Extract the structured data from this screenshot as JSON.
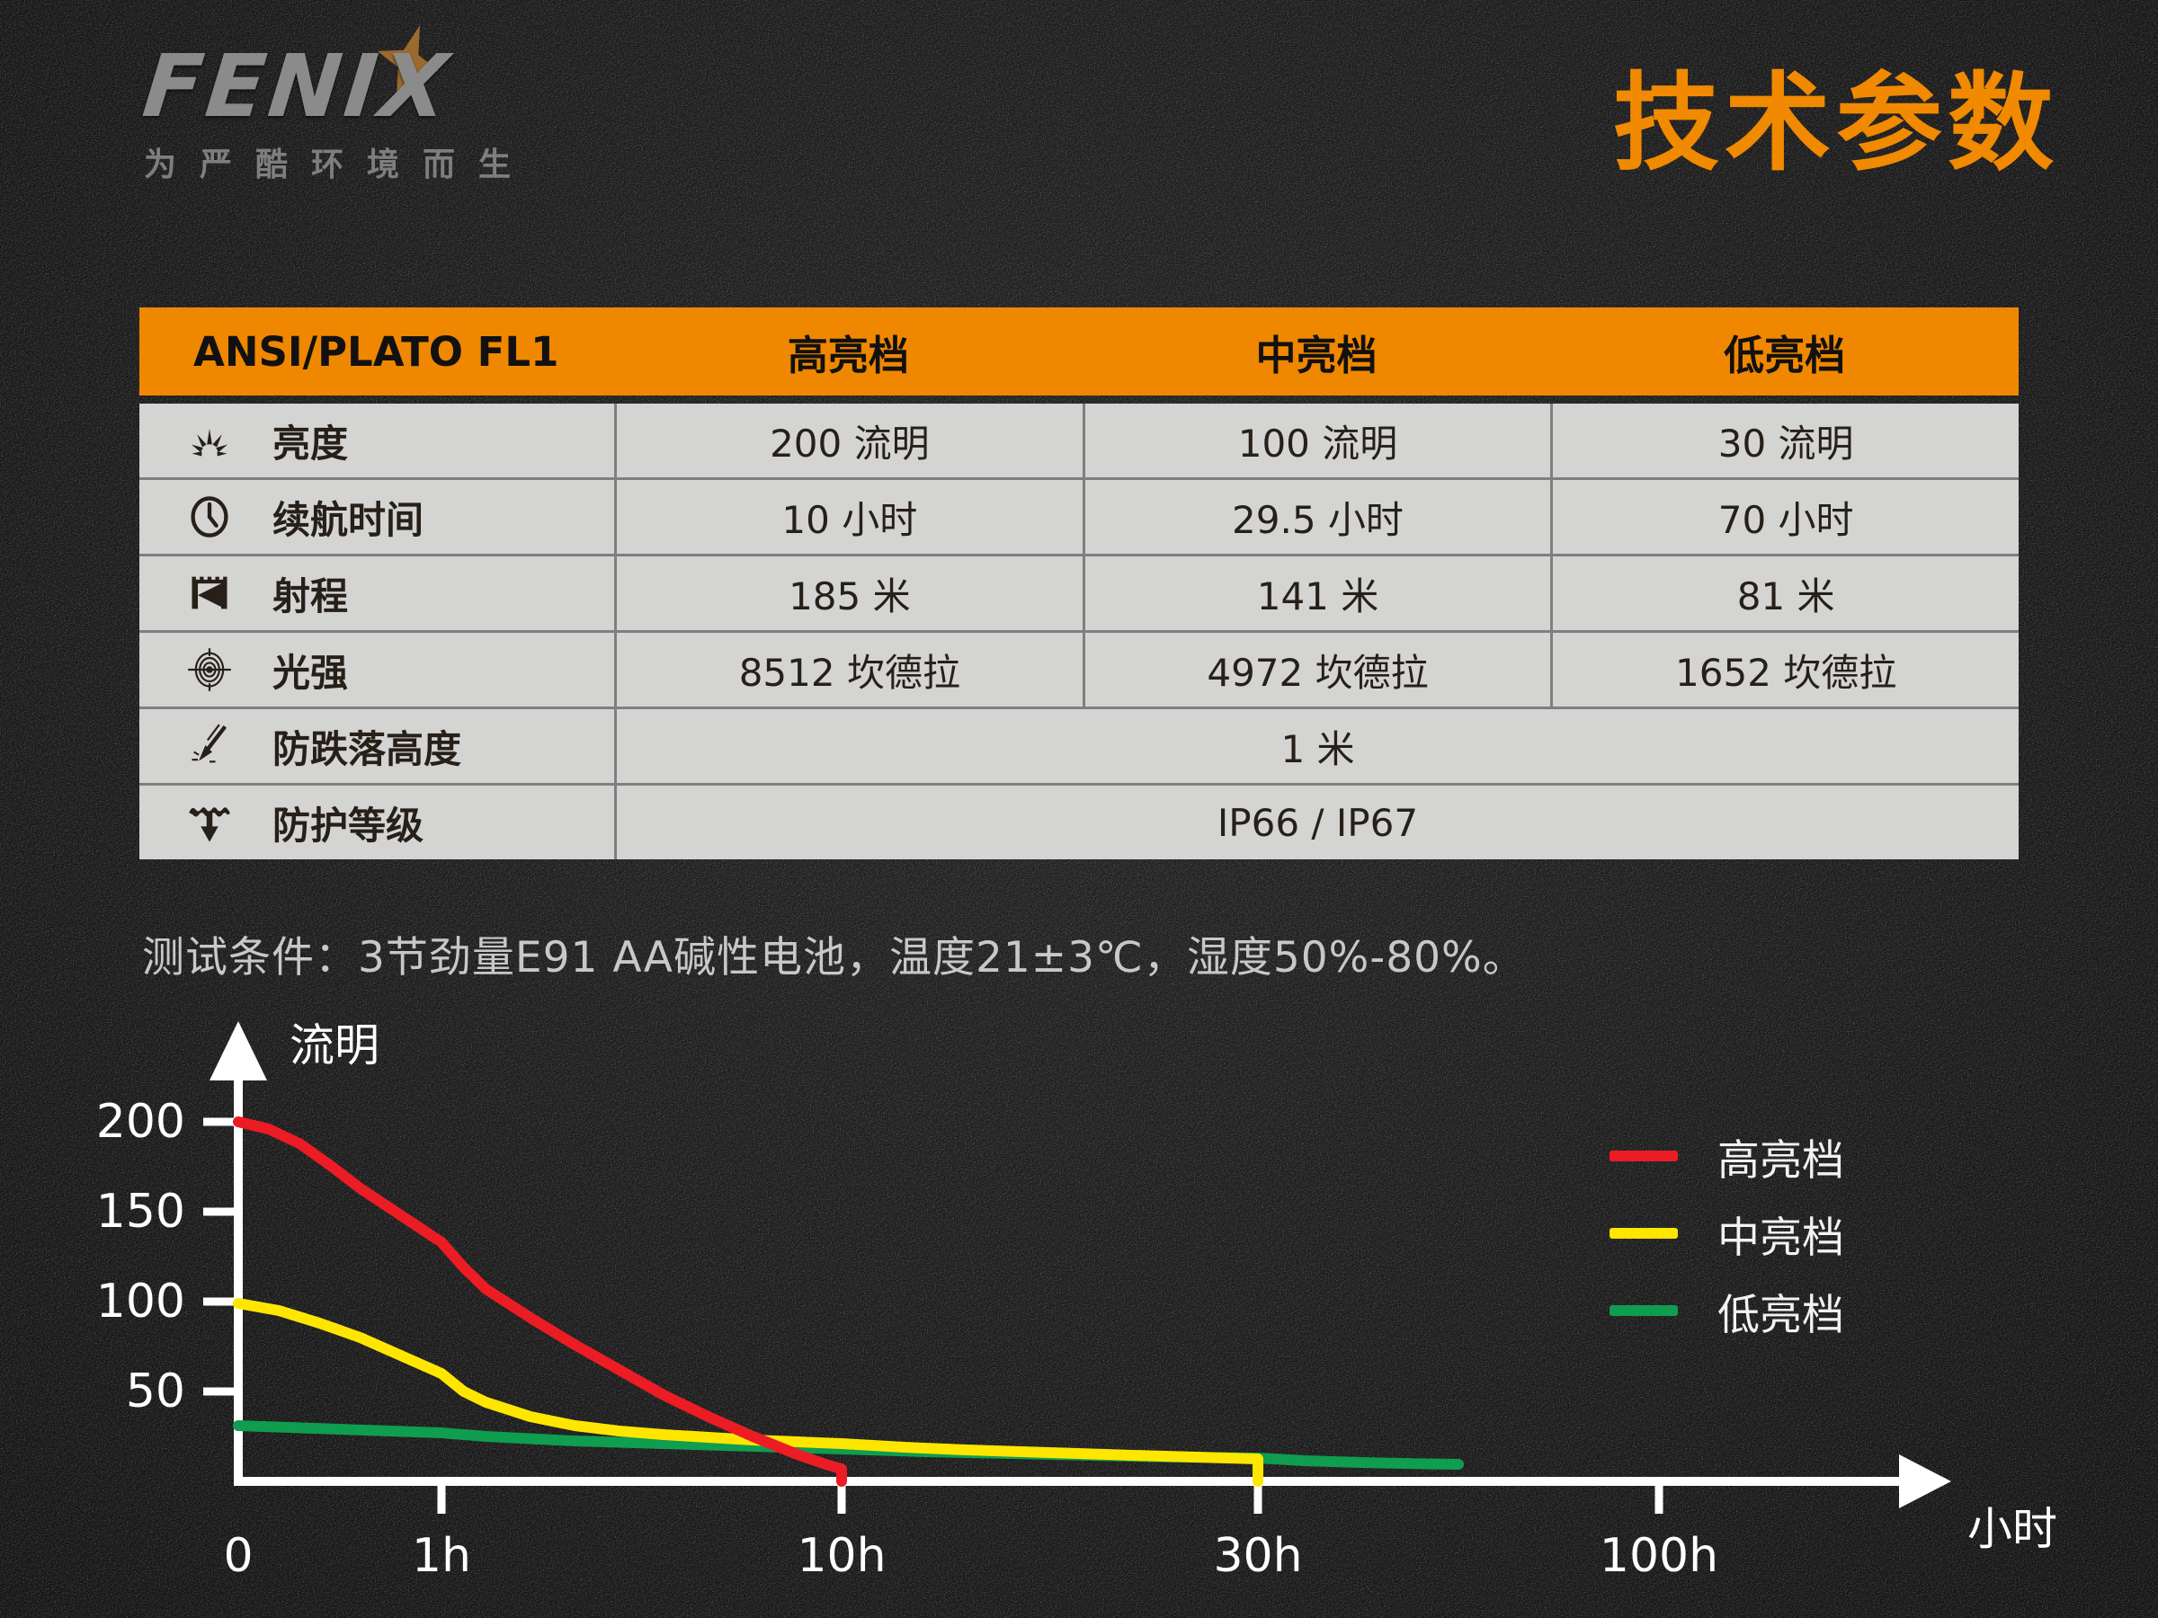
{
  "logo": {
    "brand": "FENIX",
    "tagline": "为严酷环境而生"
  },
  "page_title": "技术参数",
  "table": {
    "header": [
      "ANSI/PLATO FL1",
      "高亮档",
      "中亮档",
      "低亮档"
    ],
    "rows": [
      {
        "icon": "brightness-icon",
        "label": "亮度",
        "values": [
          "200 流明",
          "100 流明",
          "30 流明"
        ]
      },
      {
        "icon": "runtime-icon",
        "label": "续航时间",
        "values": [
          "10 小时",
          "29.5 小时",
          "70 小时"
        ]
      },
      {
        "icon": "beam-distance-icon",
        "label": "射程",
        "values": [
          "185 米",
          "141 米",
          "81 米"
        ]
      },
      {
        "icon": "intensity-icon",
        "label": "光强",
        "values": [
          "8512 坎德拉",
          "4972 坎德拉",
          "1652 坎德拉"
        ]
      },
      {
        "icon": "impact-resistance-icon",
        "label": "防跌落高度",
        "merged_value": "1 米"
      },
      {
        "icon": "waterproof-icon",
        "label": "防护等级",
        "merged_value": "IP66 / IP67"
      }
    ]
  },
  "test_conditions": "测试条件：3节劲量E91 AA碱性电池，温度21±3℃，湿度50%-80%。",
  "chart_data": {
    "type": "line",
    "title": "",
    "xlabel": "小时",
    "ylabel": "流明",
    "ylim": [
      0,
      220
    ],
    "grid": false,
    "legend_position": "right",
    "x_scale_note": "non-linear time axis, anchors 0/1h/10h/30h/100h",
    "x_ticks": [
      {
        "t": 0,
        "label": "0"
      },
      {
        "t": 1,
        "label": "1h"
      },
      {
        "t": 10,
        "label": "10h"
      },
      {
        "t": 30,
        "label": "30h"
      },
      {
        "t": 100,
        "label": "100h"
      }
    ],
    "y_ticks": [
      {
        "v": 50,
        "label": "50"
      },
      {
        "v": 100,
        "label": "100"
      },
      {
        "v": 150,
        "label": "150"
      },
      {
        "v": 200,
        "label": "200"
      }
    ],
    "series": [
      {
        "name": "高亮档",
        "color": "#ec1c24",
        "points": [
          [
            0,
            200
          ],
          [
            0.15,
            196
          ],
          [
            0.3,
            188
          ],
          [
            0.45,
            176
          ],
          [
            0.6,
            163
          ],
          [
            0.8,
            148
          ],
          [
            1,
            133
          ],
          [
            1.5,
            119
          ],
          [
            2,
            107
          ],
          [
            3,
            91
          ],
          [
            4,
            76
          ],
          [
            5,
            62
          ],
          [
            6,
            48
          ],
          [
            7,
            36
          ],
          [
            8,
            25
          ],
          [
            9,
            15
          ],
          [
            9.7,
            9
          ],
          [
            10,
            7
          ],
          [
            10,
            0
          ]
        ]
      },
      {
        "name": "中亮档",
        "color": "#ffe600",
        "points": [
          [
            0,
            99
          ],
          [
            0.2,
            95
          ],
          [
            0.4,
            88
          ],
          [
            0.6,
            80
          ],
          [
            0.8,
            70
          ],
          [
            1,
            60
          ],
          [
            1.5,
            50
          ],
          [
            2,
            44
          ],
          [
            3,
            36
          ],
          [
            4,
            31
          ],
          [
            5,
            28
          ],
          [
            6,
            26
          ],
          [
            8,
            23
          ],
          [
            10,
            21
          ],
          [
            13,
            19
          ],
          [
            16,
            17.5
          ],
          [
            20,
            16
          ],
          [
            24,
            14.5
          ],
          [
            27,
            13.5
          ],
          [
            30,
            12.5
          ],
          [
            30,
            0
          ]
        ]
      },
      {
        "name": "低亮档",
        "color": "#0f9d4f",
        "points": [
          [
            0,
            31
          ],
          [
            0.5,
            29
          ],
          [
            1,
            27
          ],
          [
            2,
            25
          ],
          [
            4,
            22.5
          ],
          [
            6,
            21
          ],
          [
            8,
            19.5
          ],
          [
            10,
            18
          ],
          [
            14,
            16.5
          ],
          [
            18,
            15.5
          ],
          [
            22,
            14.5
          ],
          [
            26,
            13.5
          ],
          [
            30,
            13
          ],
          [
            38,
            11.5
          ],
          [
            48,
            10.5
          ],
          [
            58,
            9.8
          ],
          [
            65,
            9.5
          ]
        ]
      }
    ],
    "axis_color": "#ffffff"
  }
}
